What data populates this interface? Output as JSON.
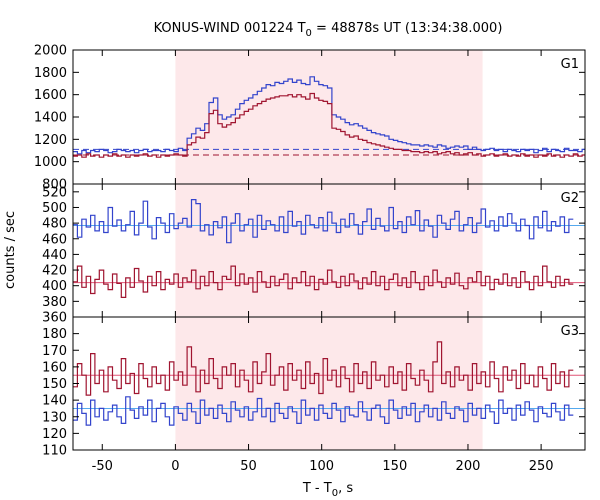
{
  "chart_data": {
    "type": "line",
    "title": "KONUS-WIND 001224 T",
    "title_sub": "0",
    "title_rest": " = 48878s UT (13:34:38.000)",
    "xlabel_main": "T - T",
    "xlabel_sub": "0",
    "xlabel_rest": ", s",
    "ylabel": "counts / sec",
    "xlim": [
      -70,
      280
    ],
    "xticks": [
      -50,
      0,
      50,
      100,
      150,
      200,
      250
    ],
    "xtick_labels": [
      "-50",
      "0",
      "50",
      "100",
      "150",
      "200",
      "250"
    ],
    "shaded_interval": [
      0,
      210
    ],
    "colors": {
      "series_a": "#3344cc",
      "series_b": "#a01530",
      "background_a": "#55aaee",
      "background_b": "#e05577",
      "shade": "#fde8ea"
    },
    "panels": [
      {
        "name": "G1",
        "ylim": [
          800,
          2000
        ],
        "yticks": [
          800,
          1000,
          1200,
          1400,
          1600,
          1800,
          2000
        ],
        "ytick_labels": [
          "800",
          "1000",
          "1200",
          "1400",
          "1600",
          "1800",
          "2000"
        ],
        "background_dashed": true,
        "background_a": 1110,
        "background_b": 1060,
        "series": [
          {
            "color_key": "series_a",
            "x_start": -70,
            "bin": 3,
            "values": [
              1090,
              1070,
              1100,
              1080,
              1100,
              1090,
              1110,
              1100,
              1080,
              1090,
              1110,
              1100,
              1090,
              1100,
              1080,
              1100,
              1110,
              1090,
              1100,
              1100,
              1090,
              1110,
              1100,
              1090,
              1120,
              1100,
              1210,
              1250,
              1300,
              1280,
              1340,
              1530,
              1570,
              1420,
              1380,
              1400,
              1420,
              1470,
              1520,
              1550,
              1570,
              1600,
              1630,
              1660,
              1690,
              1680,
              1710,
              1700,
              1720,
              1740,
              1710,
              1730,
              1700,
              1690,
              1760,
              1720,
              1690,
              1680,
              1660,
              1420,
              1400,
              1380,
              1350,
              1330,
              1340,
              1320,
              1300,
              1280,
              1260,
              1250,
              1240,
              1230,
              1200,
              1190,
              1180,
              1170,
              1160,
              1150,
              1150,
              1140,
              1150,
              1140,
              1130,
              1150,
              1140,
              1120,
              1130,
              1140,
              1130,
              1140,
              1110,
              1130,
              1110,
              1100,
              1110,
              1120,
              1100,
              1110,
              1090,
              1110,
              1100,
              1090,
              1110,
              1100,
              1110,
              1080,
              1100,
              1120,
              1090,
              1110,
              1100,
              1090,
              1120,
              1100,
              1100,
              1090,
              1110
            ]
          },
          {
            "color_key": "series_b",
            "x_start": -70,
            "bin": 3,
            "values": [
              1050,
              1060,
              1040,
              1070,
              1050,
              1060,
              1040,
              1060,
              1050,
              1070,
              1050,
              1060,
              1040,
              1060,
              1050,
              1060,
              1070,
              1050,
              1060,
              1040,
              1060,
              1050,
              1060,
              1070,
              1060,
              1050,
              1150,
              1170,
              1220,
              1210,
              1260,
              1430,
              1460,
              1340,
              1310,
              1330,
              1350,
              1390,
              1420,
              1450,
              1470,
              1500,
              1520,
              1540,
              1560,
              1570,
              1580,
              1590,
              1590,
              1600,
              1580,
              1600,
              1580,
              1560,
              1610,
              1570,
              1550,
              1540,
              1520,
              1300,
              1290,
              1270,
              1240,
              1220,
              1230,
              1200,
              1190,
              1170,
              1160,
              1150,
              1140,
              1130,
              1120,
              1110,
              1110,
              1100,
              1100,
              1090,
              1090,
              1080,
              1090,
              1080,
              1090,
              1070,
              1080,
              1090,
              1070,
              1080,
              1060,
              1070,
              1080,
              1060,
              1070,
              1050,
              1060,
              1070,
              1050,
              1060,
              1070,
              1050,
              1060,
              1050,
              1070,
              1050,
              1060,
              1040,
              1060,
              1050,
              1070,
              1050,
              1060,
              1040,
              1060,
              1050,
              1070,
              1050,
              1060
            ]
          }
        ]
      },
      {
        "name": "G2",
        "ylim": [
          360,
          530
        ],
        "yticks": [
          360,
          380,
          400,
          420,
          440,
          460,
          480,
          500,
          520
        ],
        "ytick_labels": [
          "360",
          "380",
          "400",
          "420",
          "440",
          "460",
          "480",
          "500",
          "520"
        ],
        "background_dashed": false,
        "background_a": 477,
        "background_b": 404,
        "series": [
          {
            "color_key": "series_a",
            "x_start": -70,
            "bin": 3,
            "values": [
              478,
              462,
              485,
              475,
              490,
              470,
              482,
              468,
              500,
              476,
              484,
              470,
              478,
              495,
              465,
              480,
              508,
              475,
              460,
              487,
              480,
              468,
              492,
              473,
              480,
              486,
              475,
              510,
              505,
              470,
              478,
              465,
              482,
              474,
              488,
              455,
              480,
              492,
              470,
              478,
              485,
              462,
              490,
              472,
              483,
              478,
              470,
              488,
              468,
              495,
              476,
              482,
              466,
              490,
              478,
              474,
              487,
              470,
              494,
              480,
              468,
              485,
              475,
              492,
              478,
              466,
              482,
              498,
              472,
              486,
              476,
              470,
              500,
              473,
              482,
              468,
              488,
              478,
              496,
              470,
              484,
              476,
              462,
              490,
              480,
              472,
              485,
              495,
              470,
              478,
              487,
              468,
              480,
              498,
              475,
              483,
              470,
              488,
              476,
              492,
              480,
              470,
              485,
              477,
              460,
              488,
              474,
              495,
              470,
              482,
              476,
              488,
              468,
              485
            ]
          },
          {
            "color_key": "series_b",
            "x_start": -70,
            "bin": 3,
            "values": [
              405,
              425,
              398,
              412,
              390,
              408,
              420,
              402,
              395,
              415,
              403,
              385,
              410,
              398,
              422,
              406,
              392,
              412,
              400,
              418,
              395,
              408,
              402,
              415,
              398,
              410,
              405,
              420,
              396,
              412,
              400,
              418,
              404,
              395,
              412,
              408,
              425,
              400,
              415,
              402,
              410,
              392,
              418,
              405,
              398,
              412,
              400,
              408,
              415,
              396,
              410,
              404,
              418,
              400,
              412,
              395,
              408,
              402,
              420,
              405,
              398,
              412,
              400,
              415,
              406,
              396,
              410,
              402,
              418,
              400,
              412,
              395,
              408,
              415,
              400,
              410,
              398,
              418,
              404,
              395,
              412,
              400,
              420,
              405,
              398,
              410,
              402,
              416,
              400,
              396,
              410,
              405,
              418,
              400,
              412,
              395,
              408,
              402,
              415,
              400,
              410,
              398,
              418,
              405,
              395,
              412,
              400,
              425,
              405,
              398,
              412,
              400,
              408,
              402
            ]
          }
        ]
      },
      {
        "name": "G3",
        "ylim": [
          110,
          190
        ],
        "yticks": [
          110,
          120,
          130,
          140,
          150,
          160,
          170,
          180
        ],
        "ytick_labels": [
          "110",
          "120",
          "130",
          "140",
          "150",
          "160",
          "170",
          "180"
        ],
        "background_dashed": false,
        "background_a": 135,
        "background_b": 155,
        "series": [
          {
            "color_key": "series_a",
            "x_start": -70,
            "bin": 3,
            "values": [
              128,
              138,
              132,
              125,
              140,
              130,
              135,
              128,
              133,
              137,
              130,
              126,
              142,
              134,
              129,
              136,
              131,
              140,
              127,
              135,
              138,
              130,
              125,
              136,
              132,
              128,
              138,
              133,
              126,
              140,
              131,
              135,
              129,
              137,
              132,
              127,
              139,
              134,
              130,
              136,
              128,
              133,
              141,
              130,
              135,
              127,
              138,
              132,
              129,
              136,
              133,
              126,
              140,
              131,
              135,
              128,
              137,
              132,
              129,
              138,
              134,
              127,
              136,
              131,
              130,
              139,
              133,
              128,
              135,
              137,
              130,
              126,
              140,
              134,
              129,
              136,
              131,
              138,
              127,
              133,
              137,
              130,
              135,
              128,
              139,
              132,
              129,
              136,
              134,
              127,
              138,
              131,
              135,
              129,
              137,
              133,
              126,
              140,
              132,
              135,
              128,
              137,
              131,
              139,
              134,
              127,
              136,
              132,
              130,
              138,
              133,
              128,
              137,
              131
            ]
          },
          {
            "color_key": "series_b",
            "x_start": -70,
            "bin": 3,
            "values": [
              148,
              162,
              155,
              143,
              168,
              150,
              158,
              145,
              160,
              152,
              147,
              165,
              150,
              156,
              144,
              162,
              153,
              148,
              160,
              150,
              155,
              146,
              163,
              152,
              157,
              149,
              172,
              160,
              145,
              158,
              150,
              165,
              153,
              147,
              160,
              155,
              162,
              148,
              158,
              152,
              145,
              163,
              150,
              157,
              168,
              149,
              155,
              160,
              146,
              162,
              152,
              158,
              147,
              163,
              150,
              156,
              144,
              165,
              152,
              158,
              148,
              160,
              153,
              145,
              162,
              150,
              157,
              147,
              163,
              152,
              155,
              148,
              160,
              150,
              157,
              146,
              162,
              153,
              149,
              158,
              152,
              145,
              163,
              175,
              150,
              157,
              148,
              160,
              152,
              155,
              146,
              162,
              150,
              157,
              148,
              163,
              153,
              145,
              160,
              152,
              158,
              147,
              162,
              150,
              155,
              148,
              160,
              153,
              146,
              162,
              150,
              157,
              148,
              158
            ]
          }
        ]
      }
    ]
  }
}
